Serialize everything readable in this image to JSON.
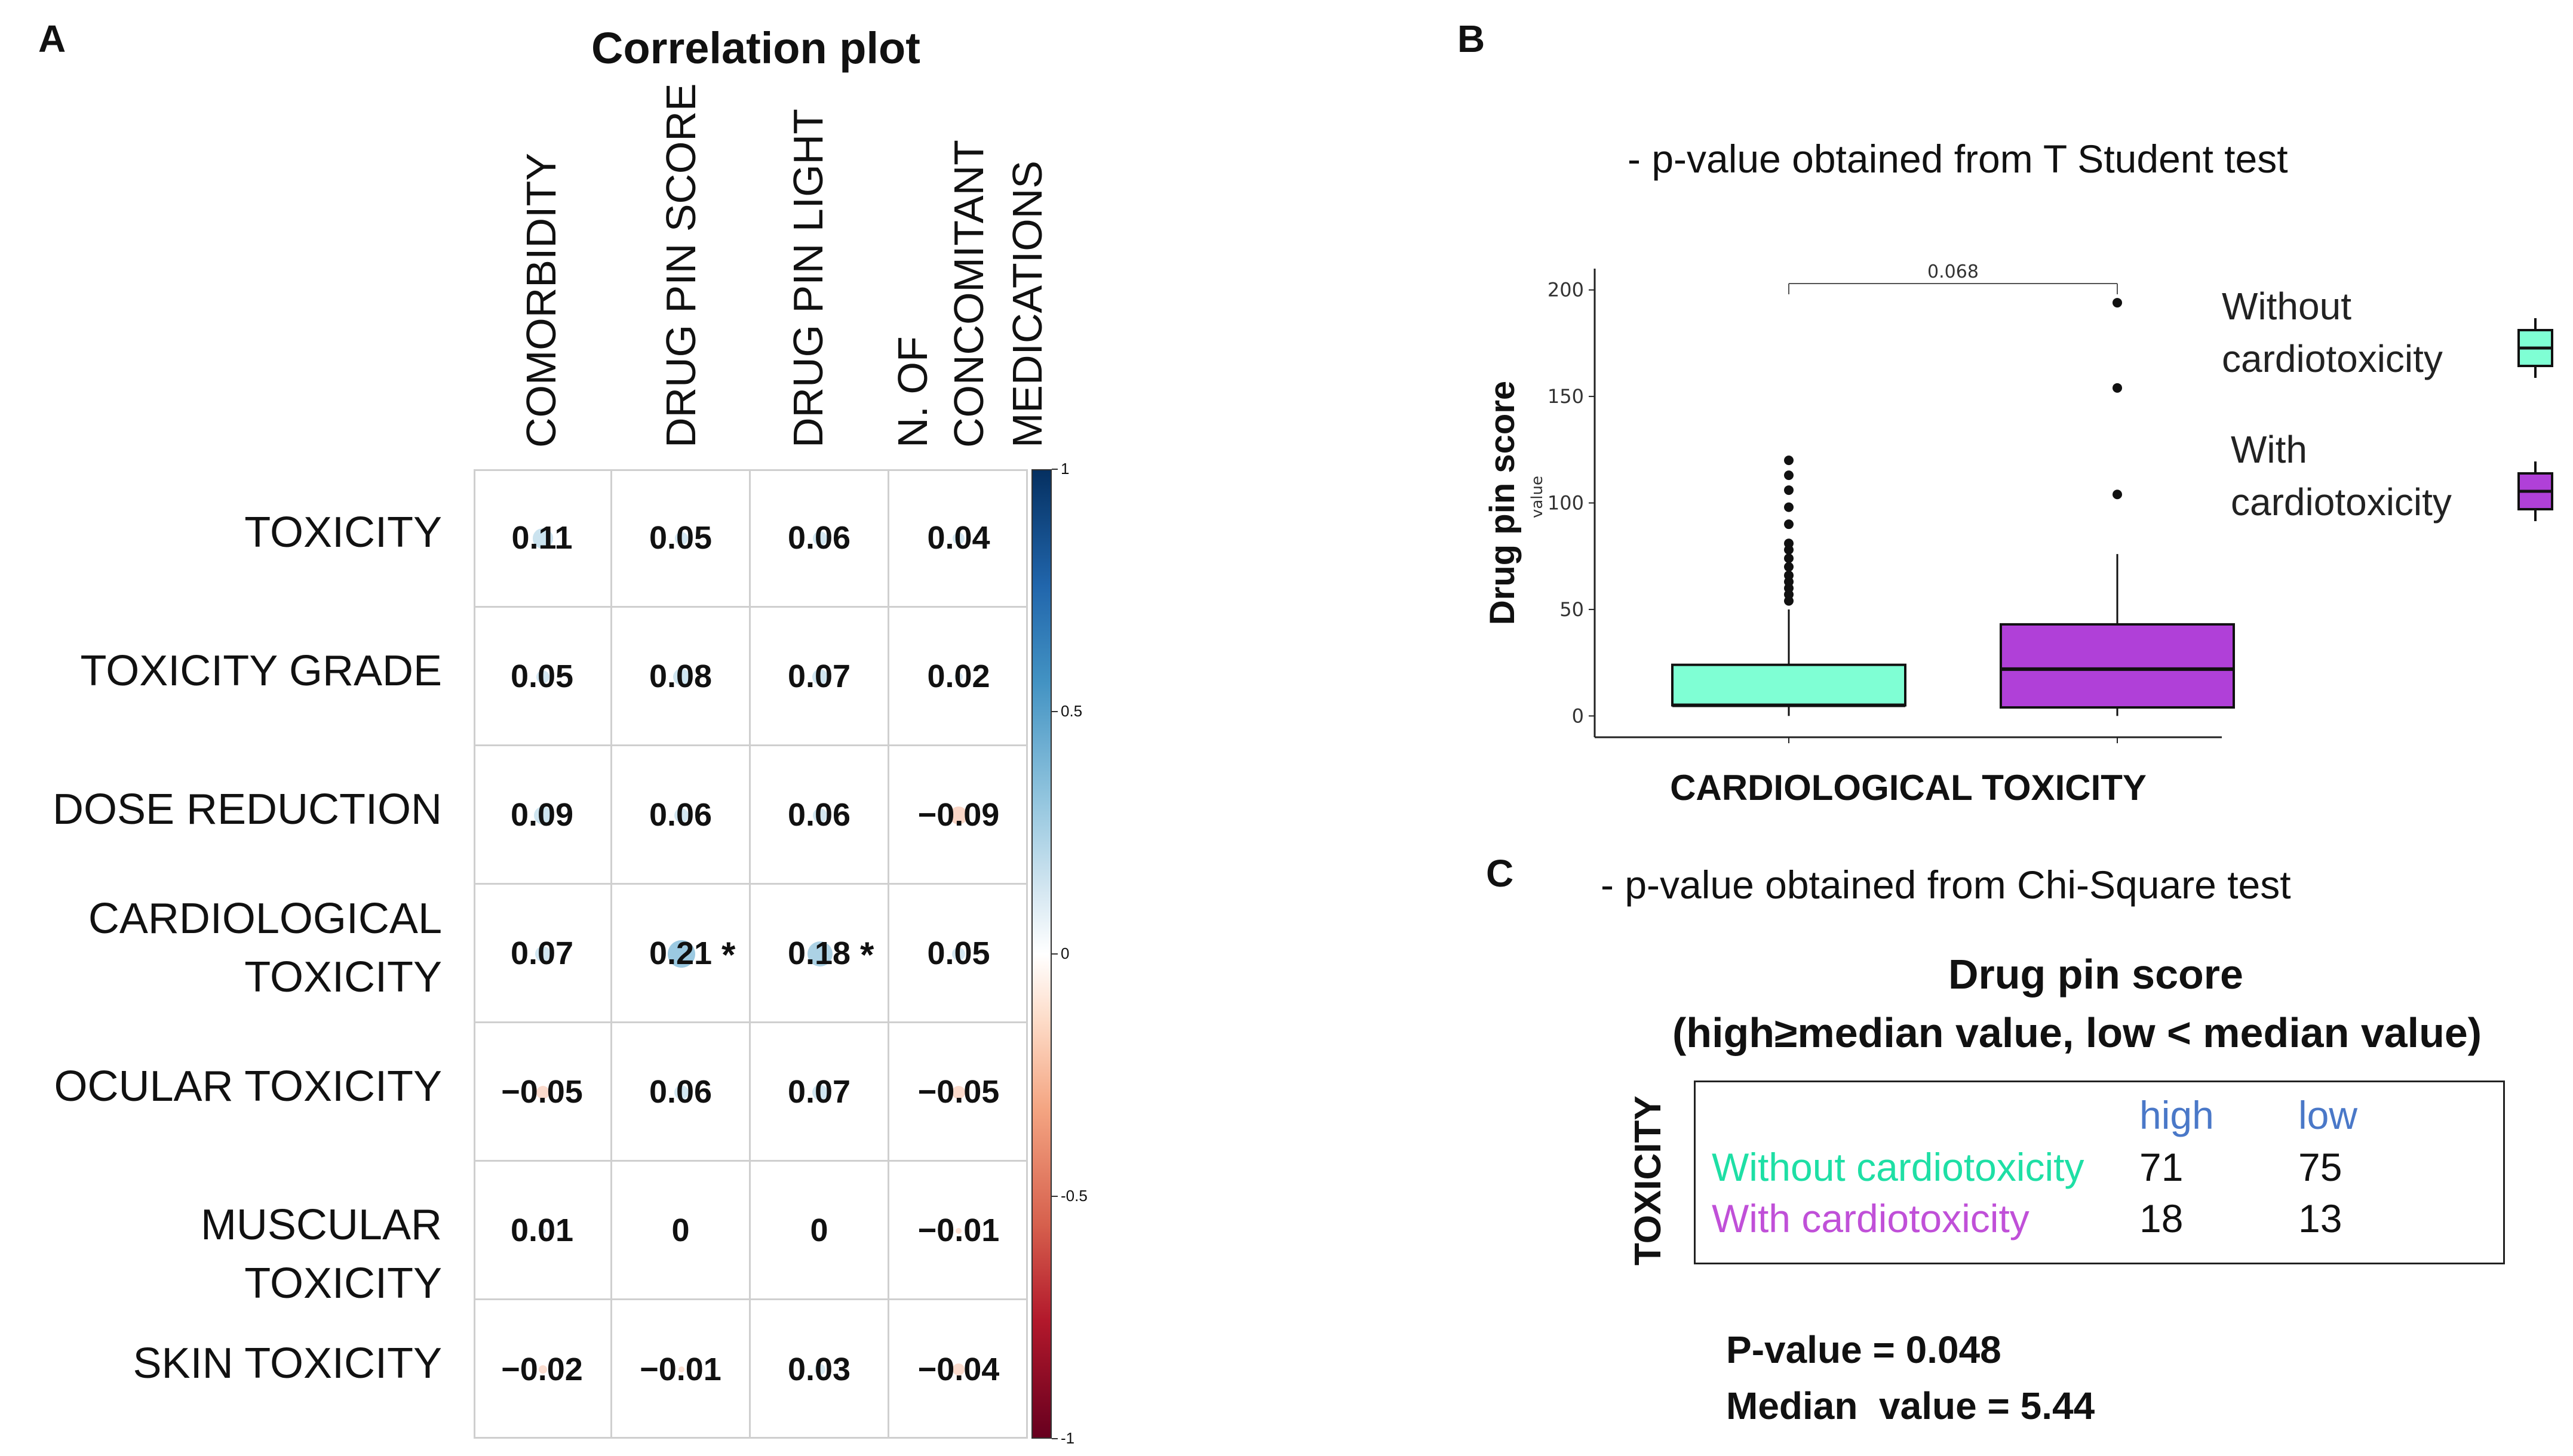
{
  "panels": {
    "a": "A",
    "b": "B",
    "c": "C"
  },
  "panel_a": {
    "title": "Correlation plot",
    "columns": [
      "COMORBIDITY",
      "DRUG PIN SCORE",
      "DRUG PIN LIGHT",
      "N. OF\nCONCOMITANT\nMEDICATIONS"
    ],
    "col_lines": [
      [
        "COMORBIDITY"
      ],
      [
        "DRUG PIN SCORE"
      ],
      [
        "DRUG PIN LIGHT"
      ],
      [
        "N. OF",
        "CONCOMITANT",
        "MEDICATIONS"
      ]
    ],
    "rows": [
      "TOXICITY",
      "TOXICITY GRADE",
      "DOSE REDUCTION",
      "CARDIOLOGICAL\nTOXICITY",
      "OCULAR TOXICITY",
      "MUSCULAR TOXICITY",
      "SKIN TOXICITY"
    ],
    "row_lines": [
      [
        "TOXICITY"
      ],
      [
        "TOXICITY GRADE"
      ],
      [
        "DOSE REDUCTION"
      ],
      [
        "CARDIOLOGICAL",
        "TOXICITY"
      ],
      [
        "OCULAR TOXICITY"
      ],
      [
        "MUSCULAR TOXICITY"
      ],
      [
        "SKIN TOXICITY"
      ]
    ],
    "value_labels": [
      [
        "0.11",
        "0.05",
        "0.06",
        "0.04"
      ],
      [
        "0.05",
        "0.08",
        "0.07",
        "0.02"
      ],
      [
        "0.09",
        "0.06",
        "0.06",
        "−0.09"
      ],
      [
        "0.07",
        "0.21",
        "0.18",
        "0.05"
      ],
      [
        "−0.05",
        "0.06",
        "0.07",
        "−0.05"
      ],
      [
        "0.01",
        "0",
        "0",
        "−0.01"
      ],
      [
        "−0.02",
        "−0.01",
        "0.03",
        "−0.04"
      ]
    ],
    "significant": [
      [
        3,
        1
      ],
      [
        3,
        2
      ]
    ],
    "star": "*",
    "colorbar_ticks": [
      "1",
      "0.5",
      "0",
      "-0.5",
      "-1"
    ]
  },
  "panel_b": {
    "note": "- p-value obtained from T Student test",
    "p_label": "0.068",
    "ylabel": "Drug pin score",
    "ylabel_sub": "value",
    "yticks": [
      "200",
      "150",
      "100",
      "50",
      "0"
    ],
    "xlabel": "CARDIOLOGICAL TOXICITY",
    "legend": [
      {
        "lines": [
          "Without",
          "cardiotoxicity"
        ],
        "color": "#7FFFD4"
      },
      {
        "lines": [
          "With",
          "cardiotoxicity"
        ],
        "color": "#B040D8"
      }
    ]
  },
  "panel_c": {
    "note": "- p-value obtained from Chi-Square test",
    "title_line1": "Drug pin score",
    "title_line2": "(high≥median value, low < median value)",
    "row_axis": "TOXICITY",
    "headers": [
      "high",
      "low"
    ],
    "rows": [
      {
        "label": "Without cardiotoxicity",
        "values": [
          "71",
          "75"
        ],
        "color": "#1EDFA5"
      },
      {
        "label": "With cardiotoxicity",
        "values": [
          "18",
          "13"
        ],
        "color": "#C050D8"
      }
    ],
    "header_color": "#4A78C8",
    "p_value": "P-value = 0.048",
    "median": "Median  value = 5.44"
  },
  "chart_data": [
    {
      "type": "heatmap",
      "title": "Correlation plot",
      "x": [
        "COMORBIDITY",
        "DRUG PIN SCORE",
        "DRUG PIN LIGHT",
        "N. OF CONCOMITANT MEDICATIONS"
      ],
      "y": [
        "TOXICITY",
        "TOXICITY GRADE",
        "DOSE REDUCTION",
        "CARDIOLOGICAL TOXICITY",
        "OCULAR TOXICITY",
        "MUSCULAR TOXICITY",
        "SKIN TOXICITY"
      ],
      "values": [
        [
          0.11,
          0.05,
          0.06,
          0.04
        ],
        [
          0.05,
          0.08,
          0.07,
          0.02
        ],
        [
          0.09,
          0.06,
          0.06,
          -0.09
        ],
        [
          0.07,
          0.21,
          0.18,
          0.05
        ],
        [
          -0.05,
          0.06,
          0.07,
          -0.05
        ],
        [
          0.01,
          0,
          0,
          -0.01
        ],
        [
          -0.02,
          -0.01,
          0.03,
          -0.04
        ]
      ],
      "zlim": [
        -1,
        1
      ]
    },
    {
      "type": "box",
      "title": "",
      "xlabel": "CARDIOLOGICAL TOXICITY",
      "ylabel": "Drug pin score",
      "ylim": [
        0,
        210
      ],
      "yticks": [
        0,
        50,
        100,
        150,
        200
      ],
      "series": [
        {
          "name": "Without cardiotoxicity",
          "q1": 5,
          "median": 5,
          "q3": 24,
          "whisker_low": 0,
          "whisker_high": 50,
          "outliers": [
            54,
            57,
            60,
            63,
            66,
            70,
            74,
            78,
            81,
            90,
            98,
            106,
            113,
            120
          ]
        },
        {
          "name": "With cardiotoxicity",
          "q1": 4,
          "median": 22,
          "q3": 43,
          "whisker_low": 0,
          "whisker_high": 76,
          "outliers": [
            104,
            154,
            194
          ]
        }
      ],
      "p_value": 0.068
    },
    {
      "type": "table",
      "title": "Drug pin score",
      "columns": [
        "high",
        "low"
      ],
      "rows": [
        "Without cardiotoxicity",
        "With cardiotoxicity"
      ],
      "values": [
        [
          71,
          75
        ],
        [
          18,
          13
        ]
      ]
    }
  ]
}
